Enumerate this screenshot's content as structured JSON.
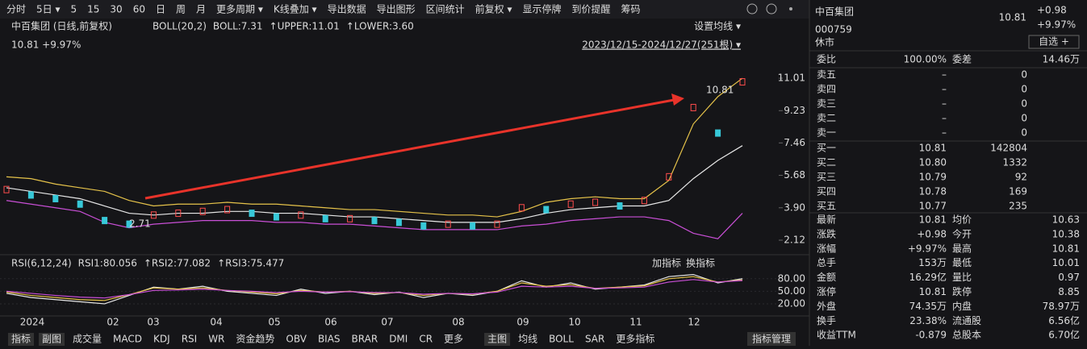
{
  "toolbar": {
    "items": [
      "分时",
      "5日 ▾",
      "5",
      "15",
      "30",
      "60",
      "日",
      "周",
      "月",
      "更多周期 ▾",
      "K线叠加 ▾",
      "导出数据",
      "导出图形",
      "区间统计",
      "前复权 ▾",
      "显示停牌",
      "到价提醒",
      "筹码"
    ],
    "active": [
      6,
      14
    ]
  },
  "main_chart": {
    "stock": "中百集团 (日线,前复权)",
    "indicator": "BOLL(20,2)",
    "legend": [
      {
        "label": "BOLL:7.31",
        "color": "#e8e8e8"
      },
      {
        "label": "↑UPPER:11.01",
        "color": "#e6c34a"
      },
      {
        "label": "↑LOWER:3.60",
        "color": "#c94fd6"
      }
    ],
    "set_ma": "设置均线 ▾",
    "last": "10.81 +9.97%",
    "range": "2023/12/15-2024/12/27(251根) ▾",
    "ylim": [
      1.59,
      11.41
    ],
    "yticks": [
      11.01,
      9.23,
      7.46,
      5.68,
      {
        "value": 3.9,
        "label": "3.90"
      },
      2.12
    ],
    "high_label": "10.81",
    "low_label": "2.71",
    "close": [
      4.9,
      4.6,
      4.4,
      4.1,
      3.2,
      3.0,
      3.5,
      3.6,
      3.7,
      3.8,
      3.6,
      3.4,
      3.5,
      3.3,
      3.3,
      3.2,
      3.1,
      2.9,
      3.0,
      2.9,
      3.0,
      3.9,
      3.8,
      4.1,
      4.2,
      4.0,
      4.3,
      5.6,
      9.4,
      8.0,
      10.81
    ],
    "series": [
      {
        "color": "#e6c34a",
        "values": [
          5.6,
          5.5,
          5.2,
          5.0,
          4.8,
          4.3,
          4.0,
          4.1,
          4.1,
          4.2,
          4.1,
          4.1,
          4.0,
          3.9,
          3.8,
          3.8,
          3.7,
          3.6,
          3.5,
          3.5,
          3.4,
          3.7,
          4.2,
          4.4,
          4.5,
          4.4,
          4.4,
          5.4,
          8.5,
          10.0,
          11.01
        ]
      },
      {
        "color": "#e8e8e8",
        "values": [
          5.0,
          4.8,
          4.6,
          4.4,
          4.0,
          3.6,
          3.5,
          3.6,
          3.6,
          3.7,
          3.7,
          3.6,
          3.6,
          3.5,
          3.4,
          3.4,
          3.3,
          3.2,
          3.1,
          3.1,
          3.1,
          3.3,
          3.6,
          3.8,
          3.9,
          4.0,
          4.0,
          4.3,
          5.5,
          6.5,
          7.31
        ]
      },
      {
        "color": "#c94fd6",
        "values": [
          4.3,
          4.1,
          3.9,
          3.7,
          3.1,
          2.8,
          3.0,
          3.1,
          3.2,
          3.2,
          3.2,
          3.1,
          3.1,
          3.0,
          3.0,
          2.9,
          2.8,
          2.7,
          2.7,
          2.7,
          2.7,
          2.9,
          3.0,
          3.2,
          3.3,
          3.4,
          3.4,
          3.2,
          2.5,
          2.2,
          3.6
        ]
      }
    ]
  },
  "rsi": {
    "label": "RSI(6,12,24)",
    "legend": [
      {
        "label": "RSI1:80.056",
        "color": "#e8e8e8"
      },
      {
        "label": "↑RSI2:77.082",
        "color": "#e6c34a"
      },
      {
        "label": "↑RSI3:75.477",
        "color": "#c94fd6"
      }
    ],
    "buttons": [
      "加指标",
      "换指标"
    ],
    "ylim": [
      -9,
      95
    ],
    "yticks": [
      {
        "value": 80,
        "label": "80.00"
      },
      {
        "value": 50,
        "label": "50.00"
      },
      {
        "value": 20,
        "label": "20.00"
      }
    ],
    "series": [
      {
        "color": "#e8e8e8",
        "values": [
          45,
          35,
          30,
          25,
          20,
          40,
          60,
          55,
          62,
          50,
          45,
          40,
          55,
          45,
          50,
          42,
          48,
          35,
          45,
          40,
          50,
          75,
          60,
          70,
          55,
          60,
          65,
          85,
          90,
          70,
          80.056
        ]
      },
      {
        "color": "#e6c34a",
        "values": [
          48,
          40,
          35,
          30,
          28,
          42,
          58,
          55,
          58,
          52,
          48,
          44,
          52,
          48,
          50,
          45,
          47,
          40,
          45,
          43,
          50,
          70,
          62,
          66,
          57,
          60,
          63,
          80,
          85,
          72,
          77.082
        ]
      },
      {
        "color": "#c94fd6",
        "values": [
          50,
          45,
          40,
          36,
          34,
          42,
          52,
          53,
          55,
          52,
          50,
          47,
          50,
          48,
          49,
          47,
          47,
          43,
          45,
          44,
          48,
          62,
          60,
          62,
          57,
          58,
          60,
          72,
          78,
          72,
          75.477
        ]
      }
    ]
  },
  "months": [
    "2024",
    "02",
    "03",
    "04",
    "05",
    "06",
    "07",
    "08",
    "09",
    "10",
    "11",
    "12"
  ],
  "tabs": {
    "items": [
      "指标",
      "副图",
      "成交量",
      "MACD",
      "KDJ",
      "RSI",
      "WR",
      "资金趋势",
      "OBV",
      "BIAS",
      "BRAR",
      "DMI",
      "CR",
      "更多",
      "主图",
      "均线",
      "BOLL",
      "SAR",
      "更多指标"
    ],
    "manage": "指标管理"
  },
  "quote": {
    "name": "中百集团",
    "code": "000759",
    "status": "休市",
    "price": "10.81",
    "change": "+0.98",
    "change_pct": "+9.97%",
    "watch": "自选 +"
  },
  "book": {
    "ratio": [
      "委比",
      "100.00%",
      "委差",
      "14.46万"
    ],
    "asks": [
      [
        "卖五",
        "–",
        "0"
      ],
      [
        "卖四",
        "–",
        "0"
      ],
      [
        "卖三",
        "–",
        "0"
      ],
      [
        "卖二",
        "–",
        "0"
      ],
      [
        "卖一",
        "–",
        "0"
      ]
    ],
    "bids": [
      [
        "买一",
        "10.81",
        "142804"
      ],
      [
        "买二",
        "10.80",
        "1332"
      ],
      [
        "买三",
        "10.79",
        "92"
      ],
      [
        "买四",
        "10.78",
        "169"
      ],
      [
        "买五",
        "10.77",
        "235"
      ]
    ]
  },
  "stats": [
    [
      "最新",
      "10.81",
      "均价",
      "10.63"
    ],
    [
      "涨跌",
      "+0.98",
      "今开",
      "10.38"
    ],
    [
      "涨幅",
      "+9.97%",
      "最高",
      "10.81"
    ],
    [
      "总手",
      "153万",
      "最低",
      "10.01"
    ],
    [
      "金额",
      "16.29亿",
      "量比",
      "0.97"
    ],
    [
      "涨停",
      "10.81",
      "跌停",
      "8.85"
    ],
    [
      "外盘",
      "74.35万",
      "内盘",
      "78.97万"
    ],
    [
      "换手",
      "23.38%",
      "流通股",
      "6.56亿"
    ],
    [
      "收益TTM",
      "-0.879",
      "总股本",
      "6.70亿"
    ]
  ]
}
